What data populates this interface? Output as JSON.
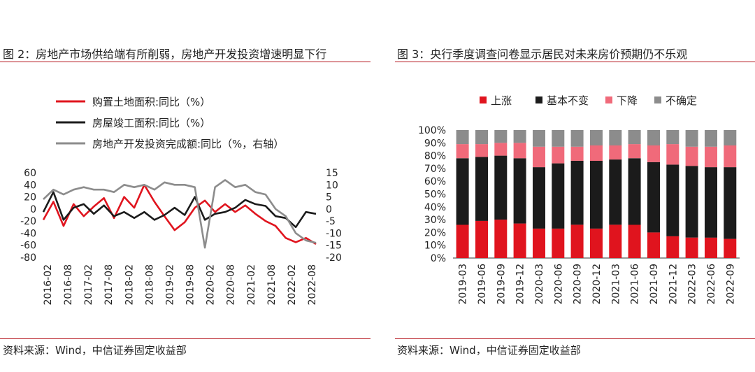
{
  "panels": {
    "left": {
      "title": "图 2：房地产市场供给端有所削弱，房地产开发投资增速明显下行",
      "source": "资料来源：Wind，中信证券固定收益部"
    },
    "right": {
      "title": "图 3：央行季度调查问卷显示居民对未来房价预期仍不乐观",
      "source": "资料来源：Wind，中信证券固定收益部"
    }
  },
  "colors": {
    "accent_rule": "#b5121b",
    "red": "#e0141e",
    "black": "#1b1b1b",
    "pink": "#f06a7a",
    "gray": "#8c8c8c"
  },
  "chart_data": [
    {
      "type": "line",
      "x_tick_labels": [
        "2016-02",
        "2016-08",
        "2017-02",
        "2017-08",
        "2018-02",
        "2018-08",
        "2019-02",
        "2019-08",
        "2020-02",
        "2020-08",
        "2021-02",
        "2021-08",
        "2022-02",
        "2022-08"
      ],
      "x": [
        "2016-02",
        "2016-05",
        "2016-08",
        "2016-11",
        "2017-02",
        "2017-05",
        "2017-08",
        "2017-11",
        "2018-02",
        "2018-05",
        "2018-08",
        "2018-11",
        "2019-02",
        "2019-05",
        "2019-08",
        "2019-11",
        "2020-02",
        "2020-05",
        "2020-08",
        "2020-11",
        "2021-02",
        "2021-05",
        "2021-08",
        "2021-11",
        "2022-02",
        "2022-05",
        "2022-08",
        "2022-10"
      ],
      "ylim_left": [
        -80,
        60
      ],
      "yticks_left": [
        60,
        40,
        20,
        0,
        -20,
        -40,
        -60,
        -80
      ],
      "ylim_right": [
        -20,
        15
      ],
      "yticks_right": [
        15,
        10,
        5,
        0,
        -5,
        -10,
        -15,
        -20
      ],
      "series": [
        {
          "name": "购置土地面积:同比（%）",
          "color": "#e0141e",
          "axis": "left",
          "values": [
            -18,
            12,
            -28,
            8,
            -12,
            4,
            18,
            -15,
            20,
            2,
            40,
            12,
            -12,
            -35,
            -22,
            2,
            14,
            -5,
            8,
            -5,
            6,
            -8,
            -20,
            -28,
            -48,
            -55,
            -48,
            -58
          ]
        },
        {
          "name": "房屋竣工面积:同比（%）",
          "color": "#1b1b1b",
          "axis": "left",
          "values": [
            -5,
            28,
            -18,
            2,
            8,
            -8,
            6,
            -12,
            -5,
            -15,
            -5,
            -18,
            -10,
            2,
            -10,
            20,
            -18,
            -8,
            -5,
            2,
            15,
            8,
            5,
            -12,
            -15,
            -30,
            -5,
            -8
          ]
        },
        {
          "name": "房地产开发投资完成额:同比（%，右轴）",
          "color": "#8c8c8c",
          "axis": "right",
          "values": [
            4,
            8,
            6,
            8,
            9,
            8,
            8,
            7,
            10,
            9,
            10,
            8,
            11,
            10,
            10,
            9,
            -16,
            9,
            12,
            9,
            10,
            7,
            6,
            0,
            -3,
            -10,
            -13,
            -14
          ]
        }
      ]
    },
    {
      "type": "bar",
      "stacked": true,
      "categories": [
        "2019-03",
        "2019-06",
        "2019-09",
        "2019-12",
        "2020-03",
        "2020-06",
        "2020-09",
        "2020-12",
        "2021-03",
        "2021-06",
        "2021-09",
        "2021-12",
        "2022-03",
        "2022-06",
        "2022-09"
      ],
      "ylim": [
        0,
        100
      ],
      "ytick_labels": [
        "100%",
        "90%",
        "80%",
        "70%",
        "60%",
        "50%",
        "40%",
        "30%",
        "20%",
        "10%",
        "0%"
      ],
      "legend_position": "top",
      "series": [
        {
          "name": "上涨",
          "color": "#e0141e",
          "values": [
            26,
            29,
            30,
            27,
            23,
            23,
            26,
            23,
            26,
            26,
            20,
            17,
            16,
            16,
            15
          ]
        },
        {
          "name": "基本不变",
          "color": "#1b1b1b",
          "values": [
            52,
            50,
            50,
            51,
            48,
            51,
            50,
            53,
            51,
            52,
            55,
            56,
            56,
            55,
            56
          ]
        },
        {
          "name": "下降",
          "color": "#f06a7a",
          "values": [
            11,
            10,
            10,
            12,
            16,
            13,
            11,
            12,
            11,
            11,
            13,
            16,
            15,
            16,
            17
          ]
        },
        {
          "name": "不确定",
          "color": "#8c8c8c",
          "values": [
            11,
            11,
            10,
            10,
            13,
            13,
            13,
            12,
            12,
            11,
            12,
            11,
            13,
            13,
            12
          ]
        }
      ]
    }
  ]
}
